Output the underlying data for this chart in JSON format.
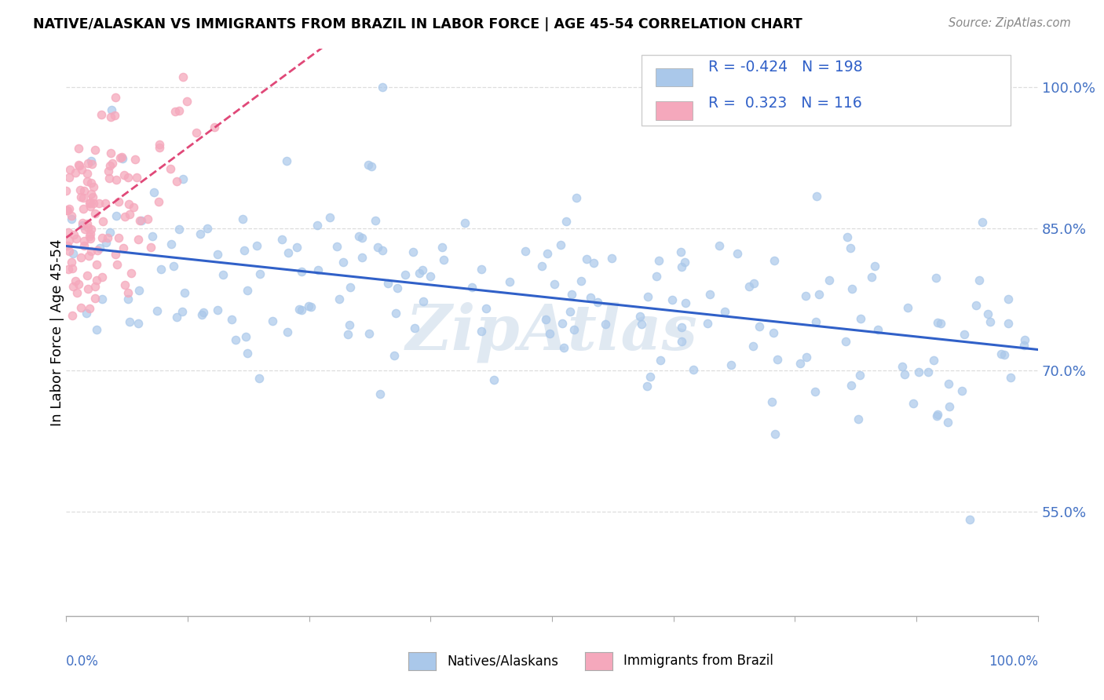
{
  "title": "NATIVE/ALASKAN VS IMMIGRANTS FROM BRAZIL IN LABOR FORCE | AGE 45-54 CORRELATION CHART",
  "source": "Source: ZipAtlas.com",
  "ylabel": "In Labor Force | Age 45-54",
  "xlim": [
    0.0,
    1.0
  ],
  "ylim": [
    0.44,
    1.04
  ],
  "yticks": [
    0.55,
    0.7,
    0.85,
    1.0
  ],
  "ytick_labels": [
    "55.0%",
    "70.0%",
    "85.0%",
    "100.0%"
  ],
  "legend_blue_label": "Natives/Alaskans",
  "legend_pink_label": "Immigrants from Brazil",
  "blue_R": "-0.424",
  "blue_N": "198",
  "pink_R": "0.323",
  "pink_N": "116",
  "blue_color": "#aac8ea",
  "pink_color": "#f5a8bc",
  "blue_line_color": "#3060c8",
  "pink_line_color": "#e04878",
  "legend_text_color": "#3060c8",
  "watermark": "ZipAtlas",
  "background_color": "#ffffff",
  "grid_color": "#dddddd",
  "ytick_color": "#4472c4",
  "xlabel_color": "#4472c4"
}
